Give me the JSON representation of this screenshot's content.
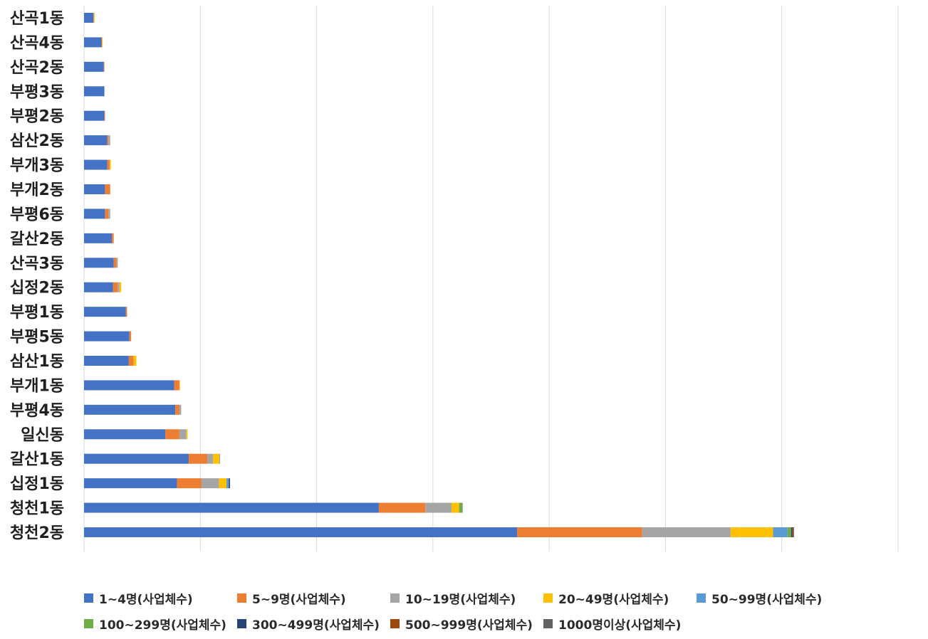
{
  "chart_data": {
    "type": "bar",
    "orientation": "horizontal",
    "stacked": true,
    "title": "",
    "xlabel": "",
    "ylabel": "",
    "xlim": [
      0,
      1400
    ],
    "x_ticks": [
      "-",
      "200",
      "400",
      "600",
      "800",
      "1,000",
      "1,200",
      "1,400"
    ],
    "grid": "vertical",
    "legend_position": "bottom",
    "categories": [
      "산곡1동",
      "산곡4동",
      "산곡2동",
      "부평3동",
      "부평2동",
      "삼산2동",
      "부개3동",
      "부개2동",
      "부평6동",
      "갈산2동",
      "산곡3동",
      "십정2동",
      "부평1동",
      "부평5동",
      "삼산1동",
      "부개1동",
      "부평4동",
      "일신동",
      "갈산1동",
      "십정1동",
      "청천1동",
      "청천2동"
    ],
    "series": [
      {
        "name": "1~4명(사업체수)",
        "color": "#4472C4",
        "values": [
          16,
          30,
          34,
          35,
          35,
          40,
          40,
          36,
          36,
          48,
          51,
          50,
          72,
          78,
          77,
          155,
          157,
          140,
          180,
          160,
          507,
          745
        ]
      },
      {
        "name": "5~9명(사업체수)",
        "color": "#ED7D31",
        "values": [
          1,
          1,
          1,
          0,
          1,
          2,
          4,
          9,
          6,
          3,
          5,
          8,
          2,
          3,
          8,
          9,
          7,
          24,
          32,
          42,
          80,
          215
        ]
      },
      {
        "name": "10~19명(사업체수)",
        "color": "#A5A5A5",
        "values": [
          0,
          0,
          0,
          0,
          0,
          3,
          0,
          0,
          3,
          0,
          2,
          3,
          0,
          0,
          0,
          0,
          3,
          12,
          10,
          30,
          45,
          152
        ]
      },
      {
        "name": "20~49명(사업체수)",
        "color": "#FFC000",
        "values": [
          1,
          1,
          0,
          0,
          0,
          0,
          2,
          0,
          0,
          0,
          0,
          3,
          0,
          0,
          5,
          1,
          0,
          2,
          11,
          13,
          13,
          73
        ]
      },
      {
        "name": "50~99명(사업체수)",
        "color": "#5B9BD5",
        "values": [
          0,
          0,
          0,
          0,
          0,
          0,
          0,
          0,
          0,
          0,
          0,
          0,
          0,
          0,
          0,
          0,
          0,
          0,
          1,
          4,
          0,
          25
        ]
      },
      {
        "name": "100~299명(사업체수)",
        "color": "#70AD47",
        "values": [
          0,
          0,
          0,
          0,
          0,
          0,
          0,
          0,
          0,
          0,
          0,
          0,
          0,
          0,
          0,
          0,
          0,
          0,
          0,
          0,
          5,
          6
        ]
      },
      {
        "name": "300~499명(사업체수)",
        "color": "#264478",
        "values": [
          0,
          0,
          0,
          0,
          0,
          0,
          0,
          0,
          0,
          0,
          0,
          0,
          0,
          0,
          0,
          0,
          0,
          0,
          0,
          2,
          0,
          2
        ]
      },
      {
        "name": "500~999명(사업체수)",
        "color": "#9E480E",
        "values": [
          0,
          0,
          0,
          0,
          0,
          0,
          0,
          0,
          0,
          0,
          0,
          0,
          0,
          0,
          0,
          0,
          0,
          0,
          0,
          0,
          0,
          2
        ]
      },
      {
        "name": "1000명이상(사업체수)",
        "color": "#636363",
        "values": [
          0,
          0,
          0,
          0,
          0,
          0,
          0,
          0,
          0,
          0,
          0,
          0,
          0,
          0,
          0,
          0,
          0,
          0,
          0,
          0,
          1,
          1
        ]
      }
    ]
  }
}
